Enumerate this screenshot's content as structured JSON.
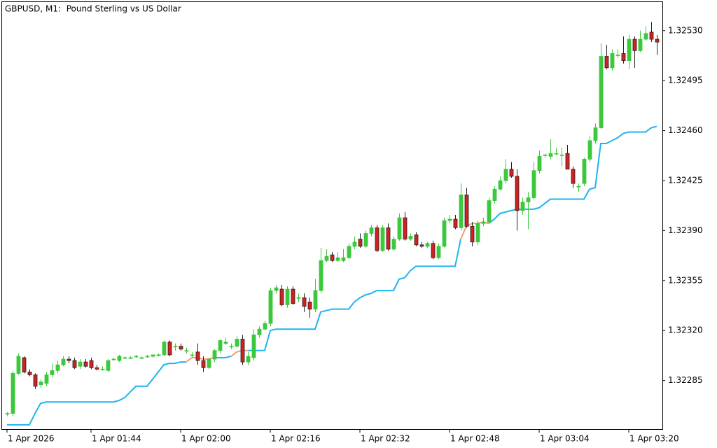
{
  "chart_data": {
    "type": "candlestick",
    "title": "GBPUSD, M1:  Pound Sterling vs US Dollar",
    "up_color": "#3cc83c",
    "down_color": "#d42020",
    "open": [
      1.32262,
      1.32262,
      1.3229,
      1.32301,
      1.32291,
      1.32289,
      1.32282,
      1.32283,
      1.32289,
      1.32292,
      1.32296,
      1.323,
      1.32299,
      1.32295,
      1.32298,
      1.32299,
      1.32294,
      1.32293,
      1.32292,
      1.323,
      1.32299,
      1.32301,
      1.32301,
      1.32302,
      1.32301,
      1.32302,
      1.32302,
      1.32303,
      1.32303,
      1.32312,
      1.32309,
      1.32309,
      1.32306,
      1.32303,
      1.32305,
      1.32299,
      1.32294,
      1.323,
      1.32306,
      1.32311,
      1.32309,
      1.32309,
      1.32314,
      1.32298,
      1.32301,
      1.32317,
      1.32321,
      1.32325,
      1.32348,
      1.32349,
      1.32338,
      1.32349,
      1.32343,
      1.32343,
      1.3234,
      1.32335,
      1.32348,
      1.32369,
      1.32373,
      1.32369,
      1.32369,
      1.32371,
      1.32379,
      1.32384,
      1.32379,
      1.32388,
      1.32392,
      1.32376,
      1.32392,
      1.32377,
      1.32384,
      1.32399,
      1.32384,
      1.32387,
      1.3238,
      1.32379,
      1.32381,
      1.32371,
      1.32379,
      1.32397,
      1.32398,
      1.32392,
      1.32415,
      1.32393,
      1.32382,
      1.32395,
      1.32396,
      1.32411,
      1.32419,
      1.32425,
      1.32433,
      1.32428,
      1.32404,
      1.3241,
      1.32413,
      1.32432,
      1.32443,
      1.32442,
      1.32444,
      1.32443,
      1.32444,
      1.32433,
      1.32421,
      1.32423,
      1.3244,
      1.32453,
      1.32462,
      1.32512,
      1.32504,
      1.32513,
      1.32514,
      1.32509,
      1.32524,
      1.32516,
      1.32524,
      1.32529,
      1.32524
    ],
    "high": [
      1.32263,
      1.32292,
      1.32304,
      1.32302,
      1.32293,
      1.3229,
      1.32286,
      1.32291,
      1.32297,
      1.32299,
      1.32302,
      1.32302,
      1.32301,
      1.323,
      1.323,
      1.32301,
      1.32296,
      1.32295,
      1.323,
      1.32301,
      1.32303,
      1.32302,
      1.32302,
      1.32303,
      1.32302,
      1.32303,
      1.32303,
      1.32304,
      1.32313,
      1.32313,
      1.32311,
      1.32311,
      1.32308,
      1.32305,
      1.32311,
      1.32302,
      1.32301,
      1.32307,
      1.32314,
      1.32315,
      1.32311,
      1.32316,
      1.32317,
      1.32305,
      1.32321,
      1.32323,
      1.32327,
      1.3235,
      1.32352,
      1.32352,
      1.32351,
      1.32351,
      1.32346,
      1.32346,
      1.32343,
      1.32356,
      1.32378,
      1.32377,
      1.32375,
      1.32375,
      1.32377,
      1.32381,
      1.32386,
      1.32388,
      1.3239,
      1.32394,
      1.32394,
      1.32394,
      1.32395,
      1.32386,
      1.32402,
      1.32403,
      1.32388,
      1.32389,
      1.32382,
      1.32382,
      1.32383,
      1.32381,
      1.32399,
      1.32401,
      1.32401,
      1.32423,
      1.3242,
      1.32396,
      1.32397,
      1.32399,
      1.32413,
      1.32421,
      1.32428,
      1.3244,
      1.32438,
      1.32433,
      1.32413,
      1.32417,
      1.32438,
      1.32446,
      1.32444,
      1.32454,
      1.32448,
      1.32448,
      1.3245,
      1.32435,
      1.32423,
      1.32441,
      1.32456,
      1.32465,
      1.32521,
      1.3252,
      1.32517,
      1.32517,
      1.32526,
      1.32527,
      1.32526,
      1.3253,
      1.32533,
      1.32536,
      1.32527
    ],
    "low": [
      1.3226,
      1.3226,
      1.32289,
      1.3229,
      1.32288,
      1.32279,
      1.3228,
      1.32281,
      1.32287,
      1.3229,
      1.32295,
      1.32297,
      1.32293,
      1.32293,
      1.32294,
      1.32293,
      1.32292,
      1.32292,
      1.32291,
      1.32299,
      1.32298,
      1.323,
      1.323,
      1.32301,
      1.323,
      1.32301,
      1.32301,
      1.32302,
      1.32302,
      1.32302,
      1.32306,
      1.32306,
      1.32304,
      1.32301,
      1.32296,
      1.32291,
      1.32293,
      1.32298,
      1.32304,
      1.3231,
      1.32307,
      1.32308,
      1.32296,
      1.32296,
      1.32299,
      1.32315,
      1.3232,
      1.32323,
      1.32346,
      1.32337,
      1.32336,
      1.32338,
      1.3234,
      1.32333,
      1.32329,
      1.32333,
      1.32346,
      1.32368,
      1.32368,
      1.32368,
      1.32368,
      1.3237,
      1.32377,
      1.32378,
      1.32378,
      1.32386,
      1.32375,
      1.32375,
      1.32376,
      1.32376,
      1.32383,
      1.32383,
      1.32383,
      1.32379,
      1.32378,
      1.32378,
      1.3237,
      1.3237,
      1.32378,
      1.32395,
      1.32391,
      1.3239,
      1.32392,
      1.32379,
      1.3238,
      1.32393,
      1.32395,
      1.32409,
      1.32418,
      1.32423,
      1.32427,
      1.3239,
      1.32401,
      1.32391,
      1.32412,
      1.3243,
      1.32441,
      1.3244,
      1.32443,
      1.32435,
      1.32433,
      1.3242,
      1.32417,
      1.32421,
      1.32438,
      1.32451,
      1.32461,
      1.32503,
      1.32502,
      1.32511,
      1.32507,
      1.32503,
      1.32504,
      1.32515,
      1.32523,
      1.32522,
      1.32513
    ],
    "close": [
      1.32262,
      1.3229,
      1.32302,
      1.32291,
      1.32289,
      1.32281,
      1.32284,
      1.32289,
      1.32292,
      1.32296,
      1.323,
      1.32299,
      1.32294,
      1.32298,
      1.32295,
      1.32294,
      1.32293,
      1.32293,
      1.32299,
      1.323,
      1.32302,
      1.32301,
      1.32301,
      1.32302,
      1.32301,
      1.32302,
      1.32303,
      1.32303,
      1.32312,
      1.32303,
      1.32309,
      1.32307,
      1.32306,
      1.32303,
      1.32299,
      1.32294,
      1.323,
      1.32306,
      1.32313,
      1.32312,
      1.32309,
      1.32314,
      1.32298,
      1.32302,
      1.32317,
      1.32321,
      1.32325,
      1.32348,
      1.3235,
      1.32338,
      1.32349,
      1.32339,
      1.32343,
      1.32337,
      1.32335,
      1.32348,
      1.32369,
      1.32372,
      1.32369,
      1.32371,
      1.32371,
      1.32379,
      1.32382,
      1.32379,
      1.32388,
      1.32392,
      1.32376,
      1.32392,
      1.32377,
      1.32384,
      1.32399,
      1.32384,
      1.32386,
      1.3238,
      1.32379,
      1.32381,
      1.32371,
      1.32379,
      1.32397,
      1.32398,
      1.32392,
      1.32415,
      1.32393,
      1.32382,
      1.32395,
      1.32396,
      1.32411,
      1.32419,
      1.32425,
      1.32433,
      1.32428,
      1.32404,
      1.3241,
      1.32413,
      1.32432,
      1.32442,
      1.32443,
      1.32444,
      1.32444,
      1.32443,
      1.32433,
      1.32423,
      1.32421,
      1.3244,
      1.32453,
      1.32462,
      1.32512,
      1.32504,
      1.32514,
      1.32513,
      1.32509,
      1.32524,
      1.32516,
      1.32524,
      1.32528,
      1.32524,
      1.32522
    ],
    "series": [
      {
        "color": "#1eb4f0",
        "values": [
          1.32254,
          1.32254,
          1.32254,
          1.32254,
          1.32254,
          1.32262,
          1.32269,
          1.3227,
          1.3227,
          1.3227,
          1.3227,
          1.3227,
          1.3227,
          1.3227,
          1.3227,
          1.3227,
          1.3227,
          1.3227,
          1.3227,
          1.3227,
          1.32271,
          1.32273,
          1.32277,
          1.32281,
          1.32281,
          1.32281,
          1.32286,
          1.32291,
          1.32296,
          1.32297,
          1.32297,
          1.32298,
          1.32298,
          null,
          null,
          null,
          null,
          1.32301,
          1.32301,
          1.32301,
          1.32302,
          null,
          null,
          1.32306,
          1.32306,
          1.32306,
          1.32306,
          1.3232,
          1.32321,
          1.32321,
          1.32321,
          1.32321,
          1.32321,
          1.32321,
          1.32321,
          1.32321,
          1.32333,
          1.32334,
          1.32335,
          1.32335,
          1.32335,
          1.32335,
          1.3234,
          1.32343,
          1.32345,
          1.32346,
          1.32348,
          1.32348,
          1.32348,
          1.32348,
          1.32356,
          1.32357,
          1.32362,
          1.32365,
          1.32365,
          1.32365,
          1.32365,
          1.32365,
          1.32365,
          1.32365,
          1.32365,
          1.32384,
          null,
          null,
          null,
          null,
          1.32395,
          1.32398,
          1.32402,
          1.32403,
          1.32404,
          1.32405,
          1.32405,
          1.32405,
          1.32405,
          1.32406,
          1.32409,
          1.32412,
          1.32412,
          1.32412,
          1.32412,
          1.32412,
          1.32412,
          1.32412,
          1.32419,
          1.3242,
          1.32451,
          1.32451,
          1.32453,
          1.32455,
          1.32458,
          1.32459,
          1.32459,
          1.32459,
          1.32459,
          1.32462,
          1.32463
        ]
      },
      {
        "color": "#f0a070",
        "values": [
          null,
          null,
          null,
          null,
          null,
          null,
          null,
          null,
          null,
          null,
          null,
          null,
          null,
          null,
          null,
          null,
          null,
          null,
          null,
          null,
          null,
          null,
          null,
          null,
          null,
          null,
          null,
          null,
          null,
          null,
          null,
          null,
          1.32298,
          1.32301,
          1.32301,
          1.323,
          1.323,
          1.32301,
          null,
          null,
          1.32302,
          1.32305,
          1.32306,
          1.32306,
          null,
          null,
          null,
          null,
          null,
          null,
          null,
          null,
          null,
          null,
          null,
          null,
          null,
          null,
          null,
          null,
          null,
          null,
          null,
          null,
          null,
          null,
          null,
          null,
          null,
          null,
          null,
          null,
          null,
          null,
          null,
          null,
          null,
          null,
          null,
          null,
          null,
          1.32384,
          1.32393,
          1.32395,
          1.32395,
          1.32396,
          1.32395,
          null,
          null,
          null,
          null,
          null,
          null,
          null,
          null,
          null,
          null,
          null,
          null,
          null,
          null,
          null,
          null,
          null,
          null,
          null,
          null,
          null,
          null,
          null,
          null,
          null,
          null,
          null,
          null,
          null,
          null
        ]
      }
    ],
    "ylim": [
      1.32251,
      1.3255
    ],
    "yticks": [
      1.32285,
      {
        "value": 1.3232,
        "label": "1.32320"
      },
      1.32355,
      {
        "value": 1.3239,
        "label": "1.32390"
      },
      1.32425,
      {
        "value": 1.3246,
        "label": "1.32460"
      },
      1.32495,
      {
        "value": 1.3253,
        "label": "1.32530"
      }
    ],
    "xticks": [
      {
        "value": 0,
        "label": "1 Apr 2026"
      },
      {
        "value": 15,
        "label": "1 Apr 01:44"
      },
      {
        "value": 31,
        "label": "1 Apr 02:00"
      },
      {
        "value": 47,
        "label": "1 Apr 02:16"
      },
      {
        "value": 63,
        "label": "1 Apr 02:32"
      },
      {
        "value": 79,
        "label": "1 Apr 02:48"
      },
      {
        "value": 95,
        "label": "1 Apr 03:04"
      },
      {
        "value": 111,
        "label": "1 Apr 03:20"
      }
    ]
  }
}
